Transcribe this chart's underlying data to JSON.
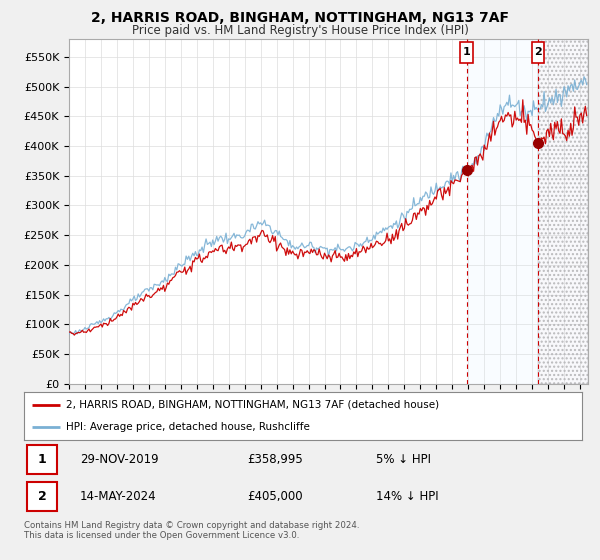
{
  "title": "2, HARRIS ROAD, BINGHAM, NOTTINGHAM, NG13 7AF",
  "subtitle": "Price paid vs. HM Land Registry's House Price Index (HPI)",
  "ylabel_ticks": [
    "£0",
    "£50K",
    "£100K",
    "£150K",
    "£200K",
    "£250K",
    "£300K",
    "£350K",
    "£400K",
    "£450K",
    "£500K",
    "£550K"
  ],
  "ytick_vals": [
    0,
    50000,
    100000,
    150000,
    200000,
    250000,
    300000,
    350000,
    400000,
    450000,
    500000,
    550000
  ],
  "ylim": [
    0,
    580000
  ],
  "xlim_start": 1995.0,
  "xlim_end": 2027.5,
  "purchase1": {
    "date_x": 2019.91,
    "price": 358995,
    "label": "1",
    "pct": "5% ↓ HPI",
    "date_str": "29-NOV-2019"
  },
  "purchase2": {
    "date_x": 2024.37,
    "price": 405000,
    "label": "2",
    "pct": "14% ↓ HPI",
    "date_str": "14-MAY-2024"
  },
  "line_red_color": "#cc0000",
  "line_blue_color": "#7ab0d4",
  "background_color": "#f0f0f0",
  "plot_bg_color": "#ffffff",
  "legend_line1": "2, HARRIS ROAD, BINGHAM, NOTTINGHAM, NG13 7AF (detached house)",
  "legend_line2": "HPI: Average price, detached house, Rushcliffe",
  "footer": "Contains HM Land Registry data © Crown copyright and database right 2024.\nThis data is licensed under the Open Government Licence v3.0.",
  "shade_color": "#ddeeff",
  "hatch_color": "#cccccc",
  "marker_color": "#990000"
}
